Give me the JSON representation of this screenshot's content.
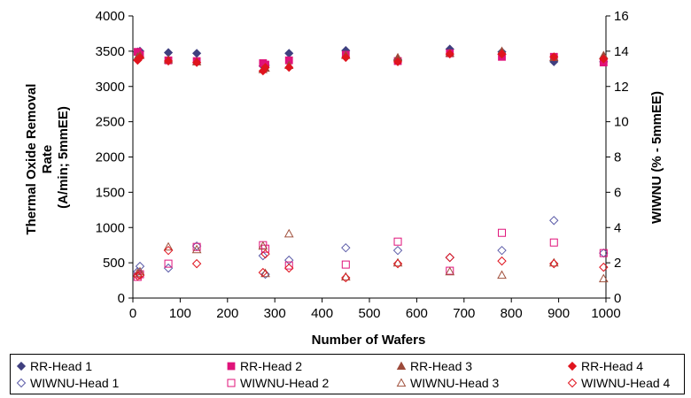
{
  "chart_data": {
    "type": "scatter",
    "title": "",
    "xlabel": "Number of Wafers",
    "ylabel_left_lines": [
      "Thermal Oxide Removal",
      "Rate",
      "(A/min; 5mmEE)"
    ],
    "ylabel_right": "WIWNU (% - 5mmEE)",
    "xlim": [
      0,
      1000
    ],
    "xticks": [
      0,
      100,
      200,
      300,
      400,
      500,
      600,
      700,
      800,
      900,
      1000
    ],
    "ylim_left": [
      0,
      4000
    ],
    "yticks_left": [
      0,
      500,
      1000,
      1500,
      2000,
      2500,
      3000,
      3500,
      4000
    ],
    "ylim_right": [
      0,
      16
    ],
    "yticks_right": [
      0,
      2,
      4,
      6,
      8,
      10,
      12,
      14,
      16
    ],
    "grid": false,
    "legend_position": "bottom",
    "series": [
      {
        "name": "RR-Head 1",
        "axis": "left",
        "marker": "diamond",
        "filled": true,
        "color": "#3f3f7f",
        "x": [
          10,
          15,
          75,
          135,
          275,
          280,
          330,
          450,
          560,
          670,
          780,
          890,
          995
        ],
        "y": [
          3490,
          3500,
          3480,
          3470,
          3290,
          3300,
          3470,
          3510,
          3380,
          3530,
          3490,
          3350,
          3350
        ]
      },
      {
        "name": "RR-Head 2",
        "axis": "left",
        "marker": "square",
        "filled": true,
        "color": "#e0137a",
        "x": [
          10,
          15,
          75,
          135,
          275,
          280,
          330,
          450,
          560,
          670,
          780,
          890,
          995
        ],
        "y": [
          3490,
          3450,
          3370,
          3360,
          3330,
          3310,
          3370,
          3450,
          3360,
          3470,
          3420,
          3420,
          3340
        ]
      },
      {
        "name": "RR-Head 3",
        "axis": "left",
        "marker": "triangle",
        "filled": true,
        "color": "#9c4a3a",
        "x": [
          10,
          15,
          75,
          135,
          275,
          280,
          330,
          450,
          560,
          670,
          780,
          890,
          995
        ],
        "y": [
          3420,
          3440,
          3380,
          3350,
          3240,
          3260,
          3300,
          3440,
          3410,
          3470,
          3500,
          3410,
          3440
        ]
      },
      {
        "name": "RR-Head 4",
        "axis": "left",
        "marker": "diamond",
        "filled": true,
        "color": "#e0141e",
        "x": [
          10,
          15,
          75,
          135,
          275,
          280,
          330,
          450,
          560,
          670,
          780,
          890,
          995
        ],
        "y": [
          3370,
          3410,
          3360,
          3340,
          3220,
          3270,
          3270,
          3410,
          3350,
          3460,
          3460,
          3420,
          3390
        ]
      },
      {
        "name": "WIWNU-Head 1",
        "axis": "right",
        "marker": "diamond",
        "filled": false,
        "color": "#5c5ca8",
        "x": [
          10,
          15,
          75,
          135,
          275,
          280,
          330,
          450,
          560,
          670,
          780,
          890,
          995
        ],
        "y": [
          1.5,
          1.8,
          1.7,
          2.95,
          2.4,
          1.35,
          2.15,
          2.85,
          2.7,
          2.3,
          2.7,
          4.4,
          2.55
        ]
      },
      {
        "name": "WIWNU-Head 2",
        "axis": "right",
        "marker": "square",
        "filled": false,
        "color": "#e0137a",
        "x": [
          10,
          15,
          75,
          135,
          275,
          280,
          330,
          450,
          560,
          670,
          780,
          890,
          995
        ],
        "y": [
          1.2,
          1.35,
          1.95,
          2.9,
          3.0,
          2.8,
          1.85,
          1.9,
          3.2,
          1.55,
          3.7,
          3.15,
          2.55
        ]
      },
      {
        "name": "WIWNU-Head 3",
        "axis": "right",
        "marker": "triangle",
        "filled": false,
        "color": "#a0503c",
        "x": [
          10,
          15,
          75,
          135,
          275,
          280,
          330,
          450,
          560,
          670,
          780,
          890,
          995
        ],
        "y": [
          1.4,
          1.5,
          2.9,
          2.75,
          2.95,
          1.4,
          3.65,
          1.2,
          2.0,
          1.5,
          1.3,
          2.0,
          1.1
        ]
      },
      {
        "name": "WIWNU-Head 4",
        "axis": "right",
        "marker": "diamond",
        "filled": false,
        "color": "#e0141e",
        "x": [
          10,
          15,
          75,
          135,
          275,
          280,
          330,
          450,
          560,
          670,
          780,
          890,
          995
        ],
        "y": [
          1.25,
          1.3,
          2.7,
          1.95,
          1.45,
          2.5,
          1.7,
          1.15,
          1.95,
          2.3,
          2.1,
          1.95,
          1.75
        ]
      }
    ]
  }
}
